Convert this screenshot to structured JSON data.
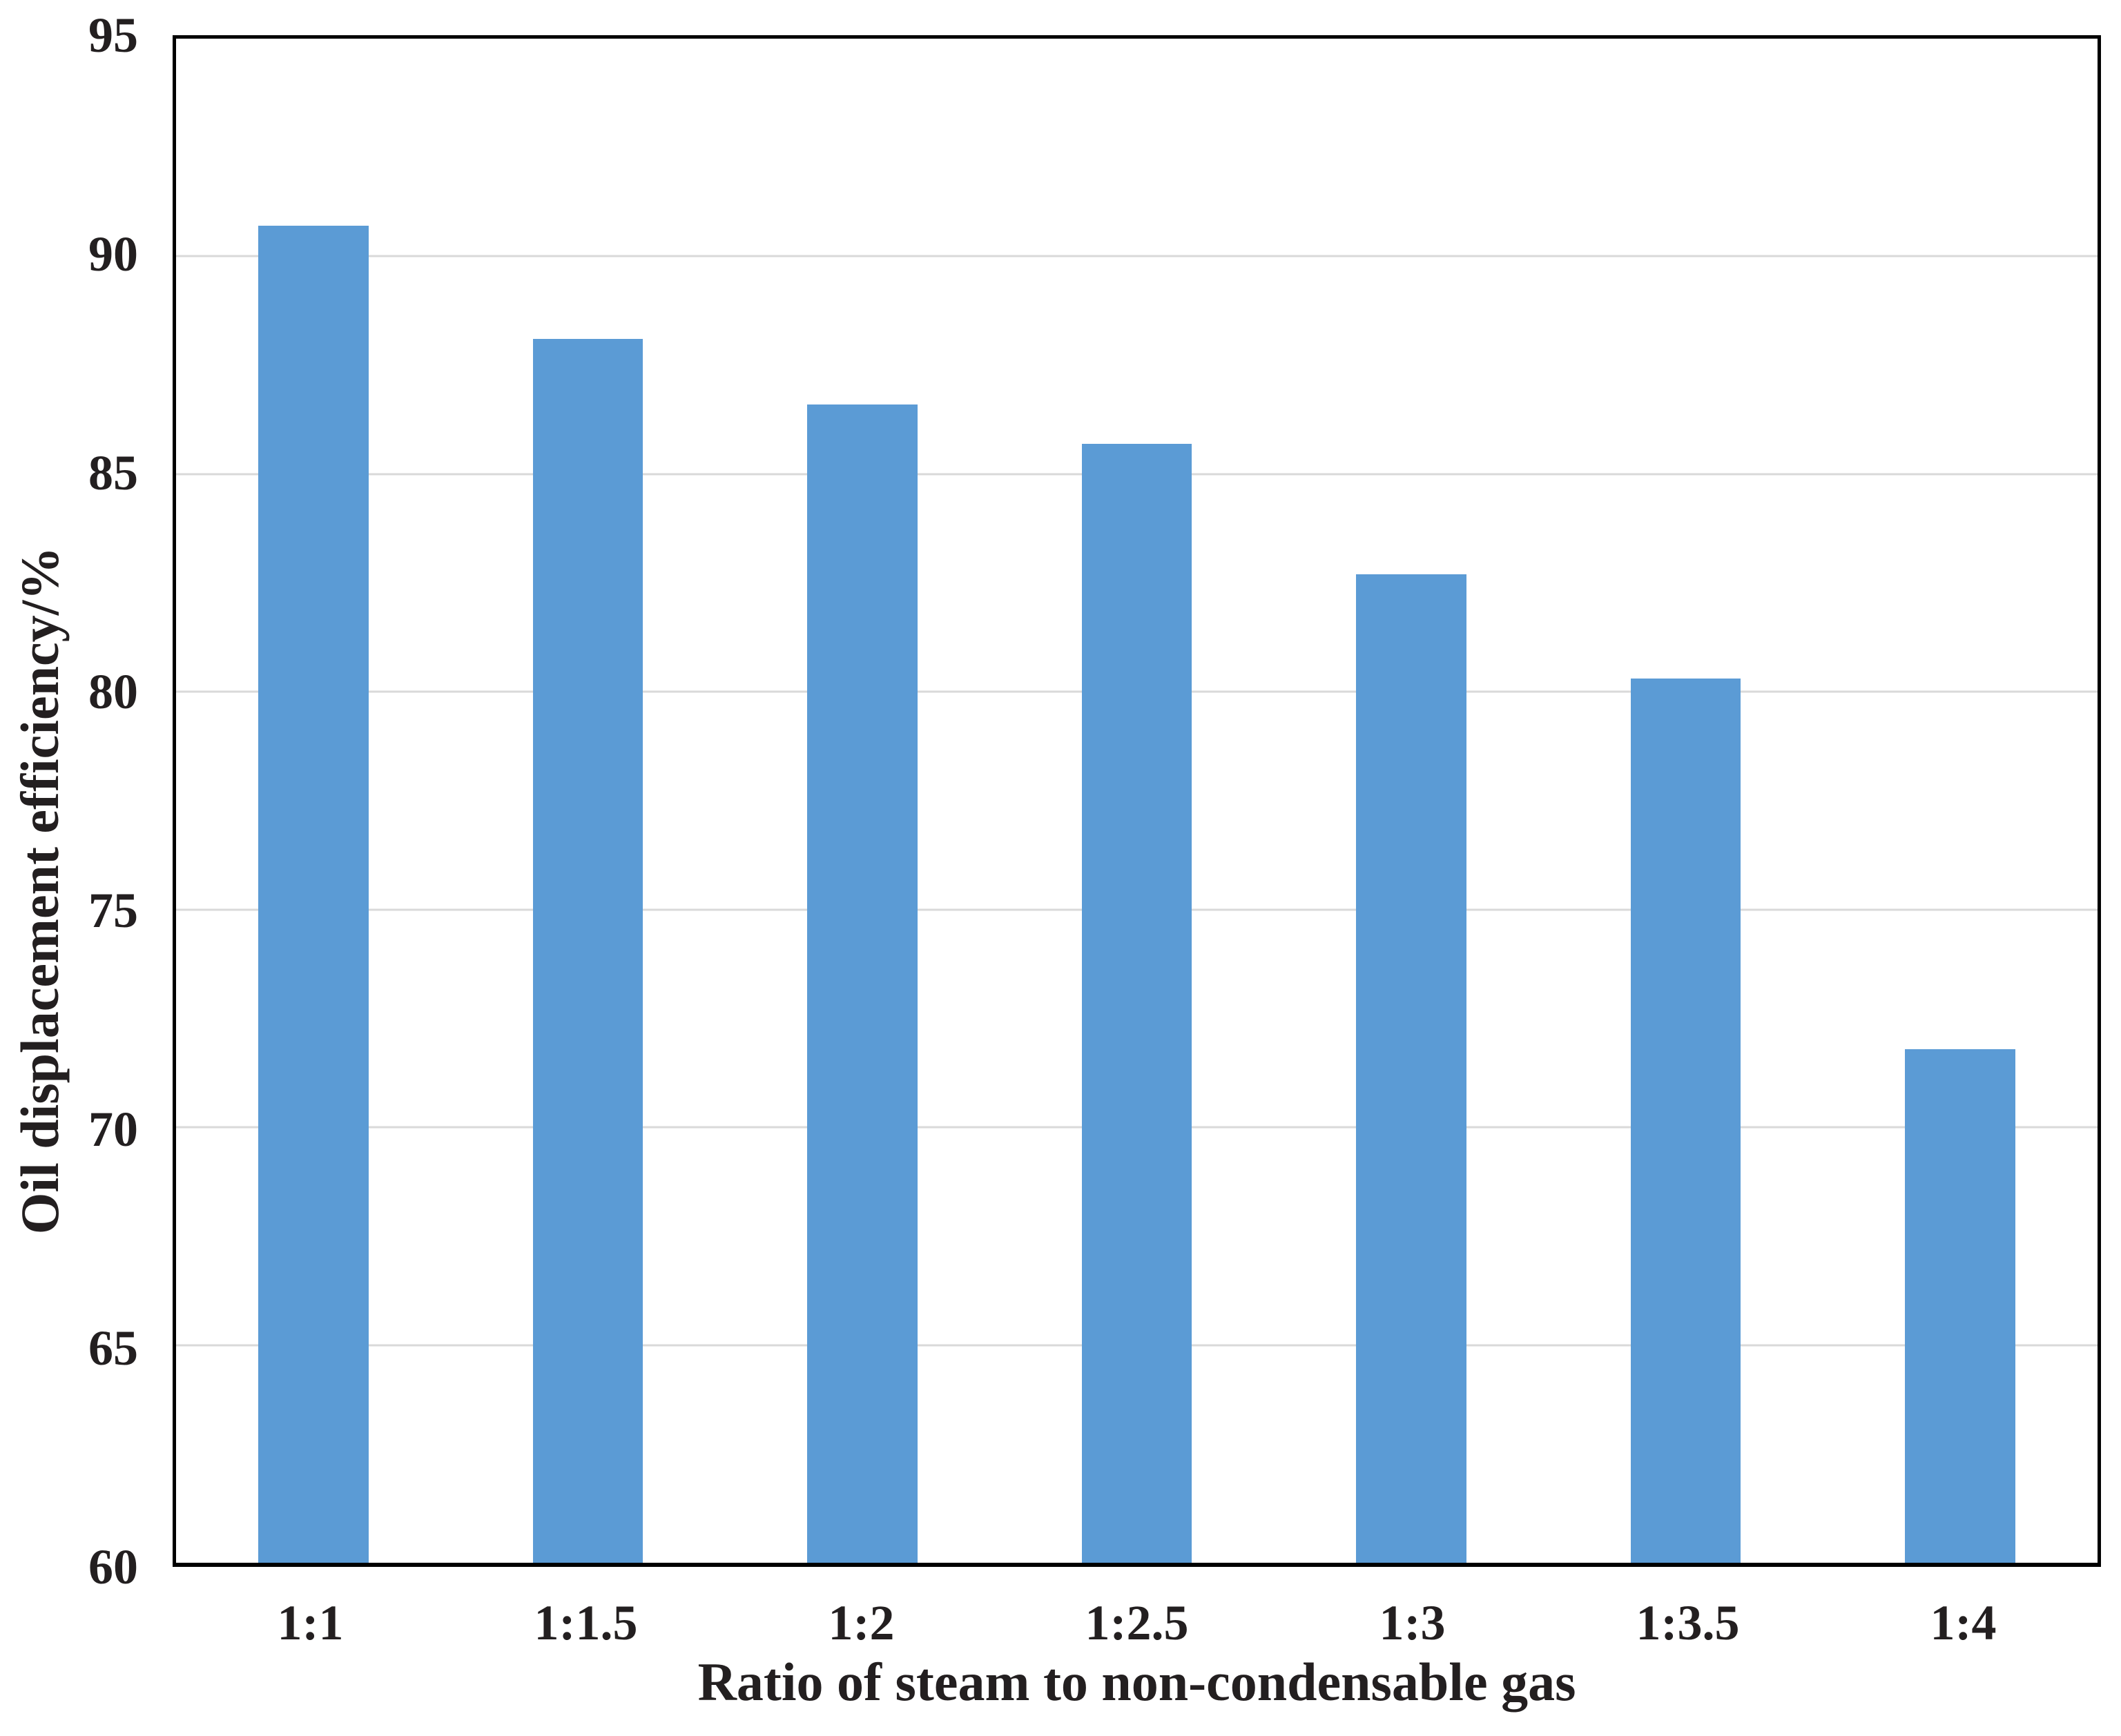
{
  "chart_data": {
    "type": "bar",
    "title": "",
    "categories": [
      "1:1",
      "1:1.5",
      "1:2",
      "1:2.5",
      "1:3",
      "1:3.5",
      "1:4"
    ],
    "values": [
      90.7,
      88.1,
      86.6,
      85.7,
      82.7,
      80.3,
      71.8
    ],
    "xlabel": "Ratio of steam to non-condensable gas",
    "ylabel": "Oil displacement efficiency/%",
    "ylim": [
      60,
      95
    ],
    "yticks": [
      60,
      65,
      70,
      75,
      80,
      85,
      90,
      95
    ],
    "grid": "horizontal gridlines at every y tick, drawn behind bars",
    "legend": "none",
    "colors": {
      "bar": "#5b9bd5",
      "gridline": "#d9d9d9",
      "frame": "#000000",
      "text": "#231f20"
    }
  }
}
